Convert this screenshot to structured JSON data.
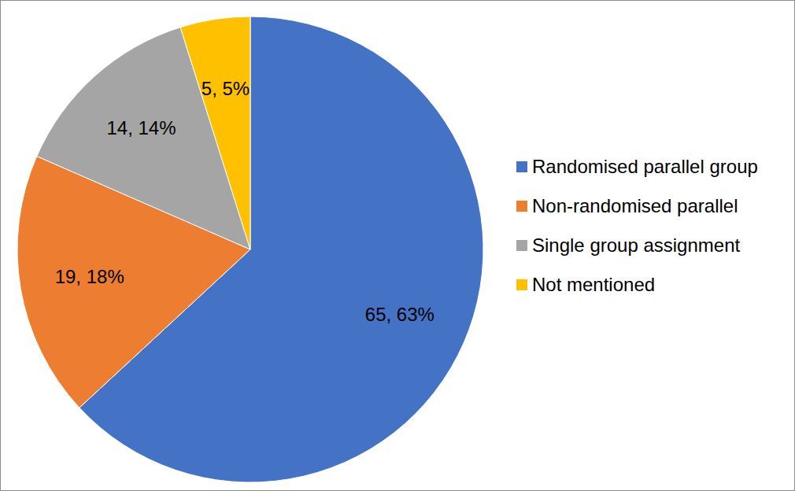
{
  "chart_data": {
    "type": "pie",
    "categories": [
      "Randomised parallel group",
      "Non-randomised parallel",
      "Single group assignment",
      "Not mentioned"
    ],
    "values": [
      65,
      19,
      14,
      5
    ],
    "value_labels": [
      "65, 63%",
      "19, 18%",
      "14, 14%",
      "5, 5%"
    ],
    "colors": [
      "#4472c4",
      "#ed7d31",
      "#a5a5a5",
      "#ffc000"
    ],
    "legend": "right",
    "data_labels": true
  }
}
